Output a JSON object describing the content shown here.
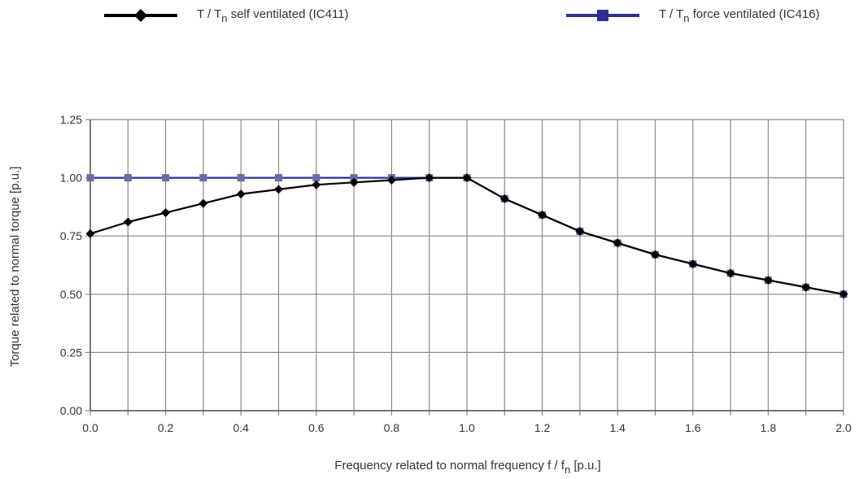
{
  "legend": [
    {
      "name_prefix": "T / T",
      "name_sub": "n",
      "name_suffix": " self ventilated (IC411)",
      "color": "#000000",
      "marker": "diamond"
    },
    {
      "name_prefix": "T / T",
      "name_sub": "n",
      "name_suffix": " force ventilated (IC416)",
      "color": "#2e3192",
      "marker": "square"
    }
  ],
  "xlabel": {
    "prefix": "Frequency related to normal frequency  f / f",
    "sub": "n",
    "suffix": " [p.u.]"
  },
  "ylabel": "Torque related to normal torque [p.u.]",
  "chart_data": {
    "type": "line",
    "title": "",
    "xlabel": "Frequency related to normal frequency f / fn [p.u.]",
    "ylabel": "Torque related to normal torque [p.u.]",
    "xlim": [
      0.0,
      2.0
    ],
    "ylim": [
      0.0,
      1.25
    ],
    "x_ticks": [
      "0.0",
      "0.2",
      "0.4",
      "0.6",
      "0.8",
      "1.0",
      "1.2",
      "1.4",
      "1.6",
      "1.8",
      "2.0"
    ],
    "y_ticks": [
      "0.00",
      "0.25",
      "0.50",
      "0.75",
      "1.00",
      "1.25"
    ],
    "grid": true,
    "legend_position": "top",
    "x": [
      0.0,
      0.1,
      0.2,
      0.3,
      0.4,
      0.5,
      0.6,
      0.7,
      0.8,
      0.9,
      1.0,
      1.1,
      1.2,
      1.3,
      1.4,
      1.5,
      1.6,
      1.7,
      1.8,
      1.9,
      2.0
    ],
    "series": [
      {
        "name": "T / Tn self ventilated (IC411)",
        "color": "#000000",
        "marker": "diamond",
        "values": [
          0.76,
          0.81,
          0.85,
          0.89,
          0.93,
          0.95,
          0.97,
          0.98,
          0.99,
          1.0,
          1.0,
          0.91,
          0.84,
          0.77,
          0.72,
          0.67,
          0.63,
          0.59,
          0.56,
          0.53,
          0.5
        ]
      },
      {
        "name": "T / Tn force ventilated (IC416)",
        "color": "#2e3192",
        "marker": "square",
        "values": [
          1.0,
          1.0,
          1.0,
          1.0,
          1.0,
          1.0,
          1.0,
          1.0,
          1.0,
          1.0,
          1.0,
          0.91,
          0.84,
          0.77,
          0.72,
          0.67,
          0.63,
          0.59,
          0.56,
          0.53,
          0.5
        ]
      }
    ]
  }
}
